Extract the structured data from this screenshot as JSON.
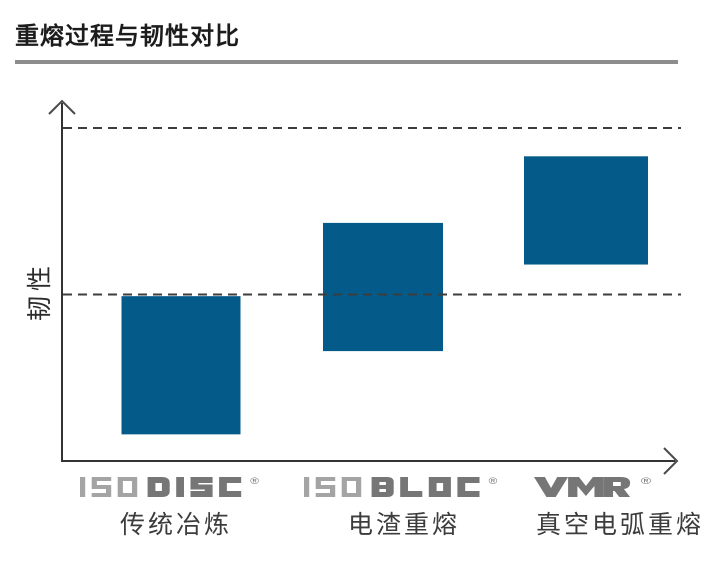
{
  "header": {
    "title": "重熔过程与韧性对比"
  },
  "chart": {
    "ylabel": "韧性",
    "bar_color": "#045a88",
    "axis_color": "#333333",
    "dash_color": "#3d3d3d",
    "divider_color": "#8d8d8d",
    "logo_color_light": "#a4a4a4",
    "logo_color_dark": "#767676",
    "registered_mark": "®"
  },
  "chart_data": {
    "type": "bar",
    "subtype": "floating-range-bars",
    "title": "重熔过程与韧性对比",
    "xlabel": "",
    "ylabel": "韧性",
    "ylim": [
      0,
      110
    ],
    "grid": false,
    "axis_tick_labels": false,
    "units": "relative (unlabeled qualitative axis, upper dashed line = 100)",
    "reference_lines": [
      50,
      100
    ],
    "reference_line_style": "dashed",
    "legend": "none",
    "categories": [
      {
        "brand_prefix": "ISO",
        "brand_main": "DISC",
        "brand": "ISODISC",
        "registered": "®",
        "process": "传统冶炼"
      },
      {
        "brand_prefix": "ISO",
        "brand_main": "BLOC",
        "brand": "ISOBLOC",
        "registered": "®",
        "process": "电渣重熔"
      },
      {
        "brand_prefix": "",
        "brand_main": "VMR",
        "brand": "VMR",
        "registered": "®",
        "process": "真空电弧重熔"
      }
    ],
    "series": [
      {
        "name": "韧性范围",
        "ranges": [
          [
            8,
            49.5
          ],
          [
            33,
            71.5
          ],
          [
            59,
            91.5
          ]
        ]
      }
    ]
  }
}
